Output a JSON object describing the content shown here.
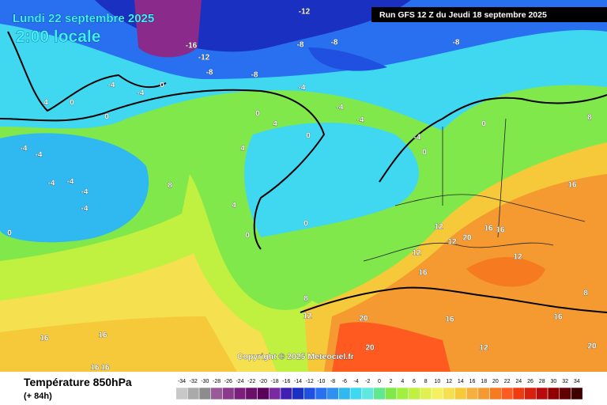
{
  "header": {
    "date": "Lundi 22 septembre 2025",
    "time": "2:00 locale",
    "run": "Run GFS 12 Z du Jeudi 18 septembre 2025"
  },
  "copyright": "Copyright © 2025 Meteociel.fr",
  "legend": {
    "title": "Température 850hPa",
    "lead": "(+ 84h)",
    "ticks": [
      -34,
      -32,
      -30,
      -28,
      -26,
      -24,
      -22,
      -20,
      -18,
      -16,
      -14,
      -12,
      -10,
      -8,
      -6,
      -4,
      -2,
      0,
      2,
      4,
      6,
      8,
      10,
      12,
      14,
      16,
      18,
      20,
      22,
      24,
      26,
      28,
      30,
      32,
      34
    ],
    "colors": [
      "#c8c8c8",
      "#aaaaaa",
      "#8c8c8c",
      "#9a5a9a",
      "#8a3a8a",
      "#7a207a",
      "#6a106a",
      "#5a005a",
      "#7a2aa0",
      "#4020b0",
      "#1a30c0",
      "#2050e0",
      "#2870f0",
      "#3090f0",
      "#30b8f0",
      "#40d8f0",
      "#60e8e0",
      "#60e890",
      "#80e84a",
      "#a0f040",
      "#c0f040",
      "#e0f050",
      "#f5f060",
      "#f5e050",
      "#f5c93a",
      "#f5b040",
      "#f59a30",
      "#f57a20",
      "#ff5a20",
      "#f03a10",
      "#d82010",
      "#b80a0a",
      "#900000",
      "#600000",
      "#400000"
    ]
  },
  "map_labels": [
    "-12",
    "-16",
    "-12",
    "-8",
    "-8",
    "-8",
    "-8",
    "-8",
    "-4",
    "-4",
    "-4",
    "0",
    "-4",
    "-4",
    "0",
    "4",
    "0",
    "4",
    "-4",
    "-4",
    "-4",
    "-4",
    "-4",
    "-4",
    "8",
    "4",
    "0",
    "0",
    "0",
    "-4",
    "0",
    "0",
    "8",
    "16",
    "12",
    "20",
    "16",
    "16",
    "12",
    "12",
    "12",
    "16",
    "8",
    "12",
    "20",
    "16",
    "20",
    "12",
    "16",
    "16",
    "16",
    "16",
    "20",
    "16",
    "8",
    "4",
    "0",
    "0"
  ]
}
